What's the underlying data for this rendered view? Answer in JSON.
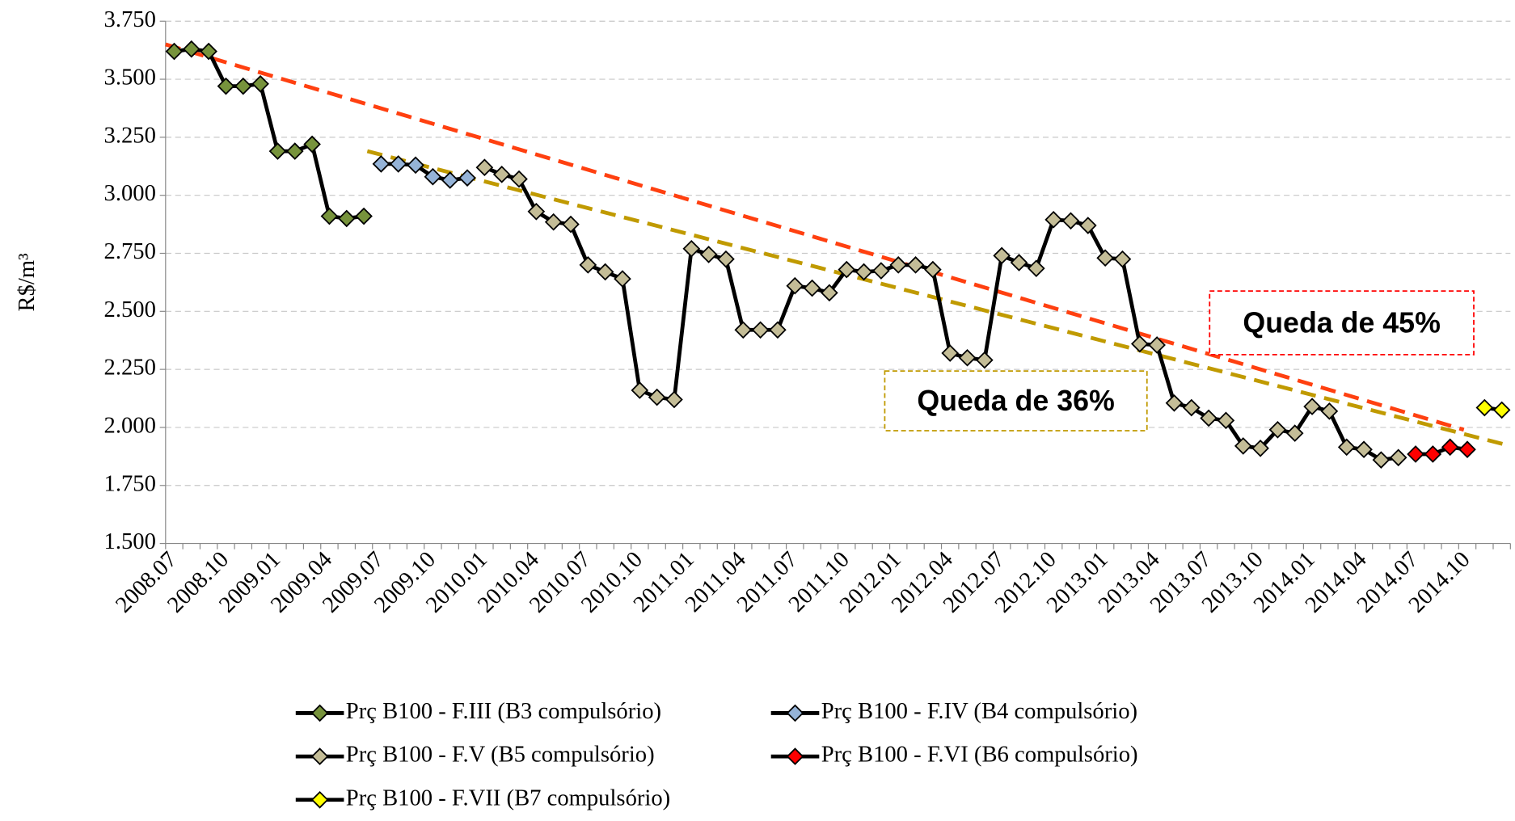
{
  "chart_data": {
    "type": "line",
    "y_label": "R$/m³",
    "ylim": [
      1.5,
      3.75
    ],
    "yticks": [
      {
        "value": 1.5,
        "label": "1.500"
      },
      {
        "value": 1.75,
        "label": "1.750"
      },
      {
        "value": 2,
        "label": "2.000"
      },
      {
        "value": 2.25,
        "label": "2.250"
      },
      {
        "value": 2.5,
        "label": "2.500"
      },
      {
        "value": 2.75,
        "label": "2.750"
      },
      {
        "value": 3,
        "label": "3.000"
      },
      {
        "value": 3.25,
        "label": "3.250"
      },
      {
        "value": 3.5,
        "label": "3.500"
      },
      {
        "value": 3.75,
        "label": "3.750"
      }
    ],
    "grid": true,
    "line_color": "#000000",
    "categories": [
      "2008.07",
      null,
      null,
      "2008.10",
      null,
      null,
      "2009.01",
      null,
      null,
      "2009.04",
      null,
      null,
      "2009.07",
      null,
      null,
      "2009.10",
      null,
      null,
      "2010.01",
      null,
      null,
      "2010.04",
      null,
      null,
      "2010.07",
      null,
      null,
      "2010.10",
      null,
      null,
      "2011.01",
      null,
      null,
      "2011.04",
      null,
      null,
      "2011.07",
      null,
      null,
      "2011.10",
      null,
      null,
      "2012.01",
      null,
      null,
      "2012.04",
      null,
      null,
      "2012.07",
      null,
      null,
      "2012.10",
      null,
      null,
      "2013.01",
      null,
      null,
      "2013.04",
      null,
      null,
      "2013.07",
      null,
      null,
      "2013.10",
      null,
      null,
      "2014.01",
      null,
      null,
      "2014.04",
      null,
      null,
      "2014.07",
      null,
      null,
      "2014.10",
      null,
      null
    ],
    "series": [
      {
        "name": "Prç B100 - F.III (B3 compulsório)",
        "color": "#77933c",
        "values": [
          3.62,
          3.63,
          3.62,
          3.47,
          3.47,
          3.48,
          3.19,
          3.19,
          3.22,
          2.91,
          2.9,
          2.91,
          null,
          null,
          null,
          null,
          null,
          null,
          null,
          null,
          null,
          null,
          null,
          null,
          null,
          null,
          null,
          null,
          null,
          null,
          null,
          null,
          null,
          null,
          null,
          null,
          null,
          null,
          null,
          null,
          null,
          null,
          null,
          null,
          null,
          null,
          null,
          null,
          null,
          null,
          null,
          null,
          null,
          null,
          null,
          null,
          null,
          null,
          null,
          null,
          null,
          null,
          null,
          null,
          null,
          null,
          null,
          null,
          null,
          null,
          null,
          null,
          null,
          null,
          null,
          null,
          null,
          null
        ]
      },
      {
        "name": "Prç B100 - F.IV (B4 compulsório)",
        "color": "#95b3d7",
        "values": [
          null,
          null,
          null,
          null,
          null,
          null,
          null,
          null,
          null,
          null,
          null,
          null,
          3.135,
          3.135,
          3.13,
          3.08,
          3.065,
          3.075,
          null,
          null,
          null,
          null,
          null,
          null,
          null,
          null,
          null,
          null,
          null,
          null,
          null,
          null,
          null,
          null,
          null,
          null,
          null,
          null,
          null,
          null,
          null,
          null,
          null,
          null,
          null,
          null,
          null,
          null,
          null,
          null,
          null,
          null,
          null,
          null,
          null,
          null,
          null,
          null,
          null,
          null,
          null,
          null,
          null,
          null,
          null,
          null,
          null,
          null,
          null,
          null,
          null,
          null,
          null,
          null,
          null,
          null,
          null,
          null
        ]
      },
      {
        "name": "Prç B100 - F.V (B5 compulsório)",
        "color": "#c4bd97",
        "values": [
          null,
          null,
          null,
          null,
          null,
          null,
          null,
          null,
          null,
          null,
          null,
          null,
          null,
          null,
          null,
          null,
          null,
          null,
          3.12,
          3.09,
          3.07,
          2.93,
          2.885,
          2.875,
          2.7,
          2.67,
          2.64,
          2.16,
          2.13,
          2.12,
          2.77,
          2.745,
          2.725,
          2.42,
          2.42,
          2.42,
          2.61,
          2.6,
          2.58,
          2.68,
          2.67,
          2.675,
          2.7,
          2.7,
          2.68,
          2.32,
          2.3,
          2.29,
          2.74,
          2.71,
          2.685,
          2.895,
          2.89,
          2.87,
          2.73,
          2.725,
          2.36,
          2.355,
          2.105,
          2.085,
          2.04,
          2.03,
          1.92,
          1.91,
          1.99,
          1.975,
          2.09,
          2.07,
          1.915,
          1.905,
          1.86,
          1.87,
          null,
          null,
          null,
          null,
          null,
          null
        ]
      },
      {
        "name": "Prç B100 - F.VI (B6 compulsório)",
        "color": "#ff0000",
        "values": [
          null,
          null,
          null,
          null,
          null,
          null,
          null,
          null,
          null,
          null,
          null,
          null,
          null,
          null,
          null,
          null,
          null,
          null,
          null,
          null,
          null,
          null,
          null,
          null,
          null,
          null,
          null,
          null,
          null,
          null,
          null,
          null,
          null,
          null,
          null,
          null,
          null,
          null,
          null,
          null,
          null,
          null,
          null,
          null,
          null,
          null,
          null,
          null,
          null,
          null,
          null,
          null,
          null,
          null,
          null,
          null,
          null,
          null,
          null,
          null,
          null,
          null,
          null,
          null,
          null,
          null,
          null,
          null,
          null,
          null,
          null,
          null,
          1.885,
          1.885,
          1.915,
          1.905,
          null,
          null
        ]
      },
      {
        "name": "Prç B100 - F.VII (B7 compulsório)",
        "color": "#ffff00",
        "values": [
          null,
          null,
          null,
          null,
          null,
          null,
          null,
          null,
          null,
          null,
          null,
          null,
          null,
          null,
          null,
          null,
          null,
          null,
          null,
          null,
          null,
          null,
          null,
          null,
          null,
          null,
          null,
          null,
          null,
          null,
          null,
          null,
          null,
          null,
          null,
          null,
          null,
          null,
          null,
          null,
          null,
          null,
          null,
          null,
          null,
          null,
          null,
          null,
          null,
          null,
          null,
          null,
          null,
          null,
          null,
          null,
          null,
          null,
          null,
          null,
          null,
          null,
          null,
          null,
          null,
          null,
          null,
          null,
          null,
          null,
          null,
          null,
          null,
          null,
          null,
          null,
          2.085,
          2.075
        ]
      }
    ],
    "trendlines": [
      {
        "color": "#ff4010",
        "x": [
          -0.5,
          74.8
        ],
        "values": [
          3.65,
          1.99
        ]
      },
      {
        "color": "#c09a00",
        "x": [
          11.2,
          77.5
        ],
        "values": [
          3.19,
          1.92
        ]
      }
    ],
    "annotations": [
      {
        "text": "Queda de 45%",
        "color": "#ff0000"
      },
      {
        "text": "Queda de 36%",
        "color": "#c09a00"
      }
    ]
  }
}
